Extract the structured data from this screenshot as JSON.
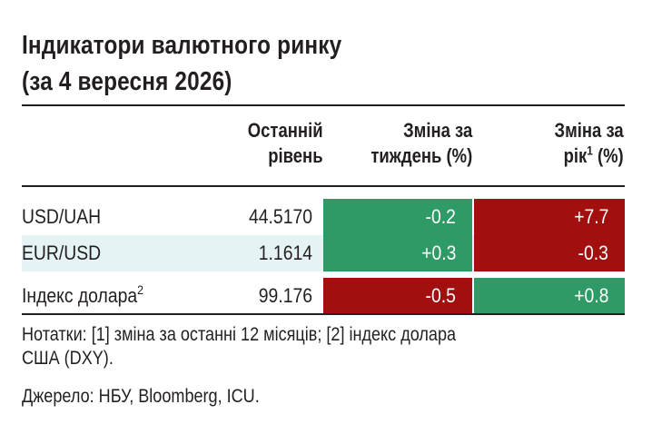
{
  "title": {
    "line1": "Індикатори валютного ринку",
    "line2": "(за 4 вересня 2026)"
  },
  "headers": {
    "level_line1": "Останній",
    "level_line2": "рівень",
    "week_line1": "Зміна за",
    "week_line2": "тиждень (%)",
    "year_line1": "Зміна за",
    "year_line2_pre": "рік",
    "year_line2_sup": "1",
    "year_line2_post": " (%)"
  },
  "rows": [
    {
      "label": "USD/UAH",
      "label_sup": "",
      "level": "44.5170",
      "week": "-0.2",
      "year": "+7.7"
    },
    {
      "label": "EUR/USD",
      "label_sup": "",
      "level": "1.1614",
      "week": "+0.3",
      "year": "-0.3"
    },
    {
      "label": "Індекс долара",
      "label_sup": "2",
      "level": "99.176",
      "week": "-0.5",
      "year": "+0.8"
    }
  ],
  "cell_colors": {
    "positive_green": "#2e9a66",
    "negative_red": "#a10f0f",
    "row_shade": "#e6f3f4"
  },
  "notes": "Нотатки: [1] зміна за останні 12 місяців; [2] індекс долара США (DXY).",
  "source": "Джерело: НБУ, Bloomberg, ICU."
}
